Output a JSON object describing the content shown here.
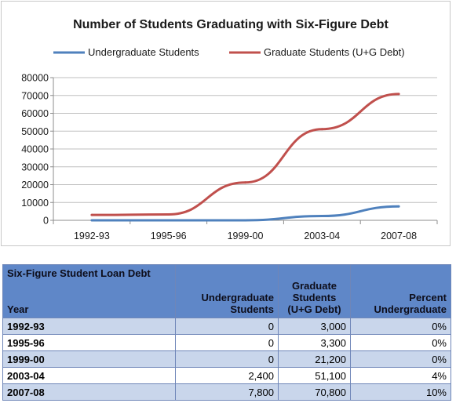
{
  "chart_data": {
    "type": "line",
    "title": "Number of Students Graduating with Six-Figure Debt",
    "categories": [
      "1992-93",
      "1995-96",
      "1999-00",
      "2003-04",
      "2007-08"
    ],
    "series": [
      {
        "name": "Undergraduate Students",
        "values": [
          0,
          0,
          0,
          2400,
          7800
        ],
        "color": "#4f81bd"
      },
      {
        "name": "Graduate Students (U+G Debt)",
        "values": [
          3000,
          3300,
          21200,
          51100,
          70800
        ],
        "color": "#c0504d"
      }
    ],
    "ylim": [
      0,
      80000
    ],
    "yticks": [
      "0",
      "10000",
      "20000",
      "30000",
      "40000",
      "50000",
      "60000",
      "70000",
      "80000"
    ],
    "xlabel": "",
    "ylabel": "",
    "grid": true,
    "legend_position": "top"
  },
  "table": {
    "header": {
      "top_left": "Six-Figure Student Loan Debt",
      "year": "Year",
      "undergrad_line1": "Undergraduate",
      "undergrad_line2": "Students",
      "grad_line1": "Graduate",
      "grad_line2": "Students",
      "grad_line3": "(U+G Debt)",
      "pct_line1": "Percent",
      "pct_line2": "Undergraduate"
    },
    "rows": [
      {
        "year": "1992-93",
        "undergrad": "0",
        "grad": "3,000",
        "pct": "0%"
      },
      {
        "year": "1995-96",
        "undergrad": "0",
        "grad": "3,300",
        "pct": "0%"
      },
      {
        "year": "1999-00",
        "undergrad": "0",
        "grad": "21,200",
        "pct": "0%"
      },
      {
        "year": "2003-04",
        "undergrad": "2,400",
        "grad": "51,100",
        "pct": "4%"
      },
      {
        "year": "2007-08",
        "undergrad": "7,800",
        "grad": "70,800",
        "pct": "10%"
      }
    ]
  }
}
